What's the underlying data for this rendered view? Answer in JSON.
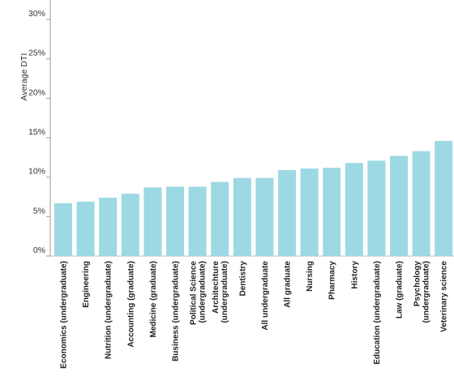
{
  "chart_data": {
    "type": "bar",
    "title": "",
    "xlabel": "",
    "ylabel": "Average DTI",
    "ylim": [
      0,
      30
    ],
    "yticks": [
      "0%",
      "5%",
      "10%",
      "15%",
      "20%",
      "25%",
      "30%"
    ],
    "grid": false,
    "bar_color": "#9dd9e3",
    "categories": [
      [
        "Economics (undergraduate)"
      ],
      [
        "Engineering"
      ],
      [
        "Nutrition (undergraduate)"
      ],
      [
        "Accounting (graduate)"
      ],
      [
        "Medicine (graduate)"
      ],
      [
        "Business (undergraduate)"
      ],
      [
        "Political Science",
        "(undergraduate)"
      ],
      [
        "Architechture",
        "(undergraduate)"
      ],
      [
        "Dentistry"
      ],
      [
        "All undergraduate"
      ],
      [
        "All graduate"
      ],
      [
        "Nursing"
      ],
      [
        "Pharmacy"
      ],
      [
        "History"
      ],
      [
        "Education (undergraduate)"
      ],
      [
        "Law (graduate)"
      ],
      [
        "Psychology",
        "(undergraduate)"
      ],
      [
        "Veterinary science"
      ]
    ],
    "values": [
      6.7,
      6.9,
      7.4,
      7.9,
      8.7,
      8.8,
      8.8,
      9.4,
      9.9,
      9.9,
      10.9,
      11.1,
      11.2,
      11.8,
      12.1,
      12.7,
      13.3,
      14.6
    ]
  }
}
